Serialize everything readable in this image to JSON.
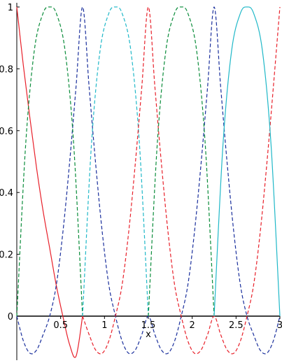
{
  "chart_data": {
    "type": "line",
    "title": "",
    "xlabel": "x",
    "ylabel": "",
    "xlim": [
      0,
      3
    ],
    "ylim": [
      -0.14,
      1.0
    ],
    "x_ticks": [
      {
        "value": 0.5,
        "label": "0.5"
      },
      {
        "value": 1,
        "label": "1"
      },
      {
        "value": 1.5,
        "label": "1.5"
      },
      {
        "value": 2,
        "label": "2"
      },
      {
        "value": 2.5,
        "label": "2.5"
      },
      {
        "value": 3,
        "label": "3"
      }
    ],
    "y_ticks": [
      {
        "value": 0,
        "label": "0"
      },
      {
        "value": 0.2,
        "label": "0.2"
      },
      {
        "value": 0.4,
        "label": "0.4"
      },
      {
        "value": 0.6,
        "label": "0.6"
      },
      {
        "value": 0.8,
        "label": "0.8"
      },
      {
        "value": 1,
        "label": "1"
      }
    ],
    "grid": false,
    "legend": "none",
    "series": [
      {
        "color": "#e8202a",
        "style": "solid",
        "kind": "arch",
        "x": [
          0,
          0.075,
          0.15,
          0.225,
          0.3,
          0.375,
          0.45,
          0.525,
          0.6,
          0.675,
          0.75
        ],
        "y": [
          1.0,
          0.81,
          0.64,
          0.48,
          0.34,
          0.22,
          0.1,
          0.0,
          -0.09,
          -0.13,
          0.0
        ]
      },
      {
        "color": "#1a2f9c",
        "style": "dashed",
        "kind": "arch",
        "x": [
          0,
          0.075,
          0.15,
          0.225,
          0.3,
          0.375,
          0.45,
          0.525,
          0.6,
          0.675,
          0.75,
          0.825,
          0.9,
          0.975,
          1.05,
          1.125,
          1.2,
          1.275,
          1.35,
          1.425,
          1.5,
          1.575,
          1.65,
          1.725,
          1.8,
          1.875,
          1.95,
          2.025,
          2.1,
          2.175,
          2.25,
          2.325,
          2.4,
          2.475,
          2.55,
          2.625,
          2.7,
          2.775,
          2.85,
          2.925,
          3.0
        ],
        "y": [
          0.0,
          -0.08,
          -0.12,
          -0.11,
          -0.06,
          0.0,
          0.1,
          0.27,
          0.49,
          0.74,
          1.0,
          0.74,
          0.49,
          0.27,
          0.1,
          0.0,
          -0.08,
          -0.12,
          -0.11,
          -0.06,
          0.0,
          -0.06,
          -0.11,
          -0.12,
          -0.08,
          0.0,
          0.1,
          0.27,
          0.49,
          0.74,
          1.0,
          0.74,
          0.49,
          0.27,
          0.1,
          0.0,
          -0.06,
          -0.11,
          -0.12,
          -0.08,
          0.0
        ]
      },
      {
        "color": "#0a8c3a",
        "style": "dashed",
        "kind": "arch",
        "x": [
          0,
          0.1,
          0.2,
          0.3,
          0.375,
          0.45,
          0.55,
          0.65,
          0.75
        ],
        "y": [
          0.0,
          0.55,
          0.86,
          0.98,
          1.0,
          0.98,
          0.86,
          0.55,
          0.0
        ]
      },
      {
        "color": "#20b8c8",
        "style": "dashed",
        "kind": "arch",
        "x": [
          0.75,
          0.85,
          0.95,
          1.05,
          1.125,
          1.2,
          1.3,
          1.4,
          1.5
        ],
        "y": [
          0.0,
          0.55,
          0.86,
          0.98,
          1.0,
          0.98,
          0.86,
          0.55,
          0.0
        ]
      },
      {
        "color": "#e8202a",
        "style": "dashed",
        "kind": "arch",
        "x": [
          0.75,
          0.825,
          0.9,
          0.975,
          1.05,
          1.125,
          1.2,
          1.275,
          1.35,
          1.425,
          1.5,
          1.575,
          1.65,
          1.725,
          1.8,
          1.875,
          1.95,
          2.025,
          2.1,
          2.175,
          2.25,
          2.325,
          2.4,
          2.475,
          2.55,
          2.625,
          2.7,
          2.775,
          2.85,
          2.925,
          3.0
        ],
        "y": [
          0.0,
          -0.06,
          -0.11,
          -0.12,
          -0.08,
          0.0,
          0.1,
          0.27,
          0.49,
          0.74,
          1.0,
          0.74,
          0.49,
          0.27,
          0.1,
          0.0,
          -0.08,
          -0.12,
          -0.11,
          -0.06,
          0.0,
          -0.06,
          -0.11,
          -0.12,
          -0.08,
          0.0,
          0.1,
          0.27,
          0.49,
          0.74,
          1.0
        ]
      },
      {
        "color": "#0a8c3a",
        "style": "dashed",
        "kind": "arch",
        "x": [
          1.5,
          1.6,
          1.7,
          1.8,
          1.875,
          1.95,
          2.05,
          2.15,
          2.25
        ],
        "y": [
          0.0,
          0.55,
          0.86,
          0.98,
          1.0,
          0.98,
          0.86,
          0.55,
          0.0
        ]
      },
      {
        "color": "#20b8c8",
        "style": "solid",
        "kind": "arch",
        "x": [
          2.25,
          2.35,
          2.45,
          2.55,
          2.625,
          2.7,
          2.8,
          2.9,
          3.0
        ],
        "y": [
          0.0,
          0.55,
          0.86,
          0.98,
          1.0,
          0.98,
          0.86,
          0.55,
          0.0
        ]
      }
    ]
  }
}
